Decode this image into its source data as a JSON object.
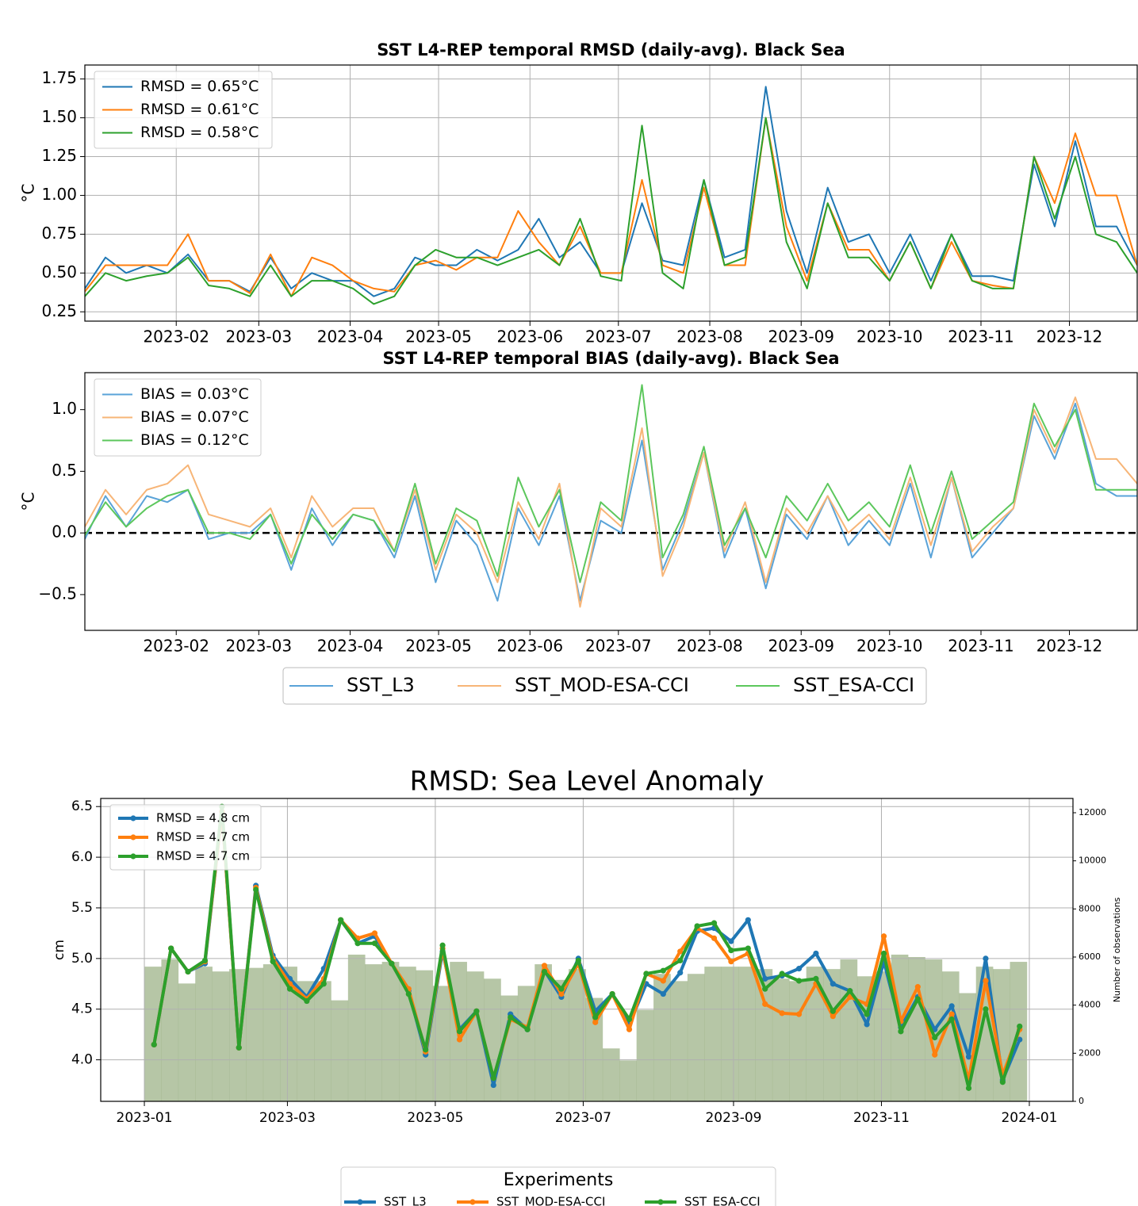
{
  "chart_data": [
    {
      "type": "line",
      "title": "SST L4-REP temporal RMSD (daily-avg). Black Sea",
      "y_label": "°C",
      "grid": true,
      "legend": "upper left",
      "x": [
        0,
        7,
        14,
        21,
        28,
        35,
        42,
        49,
        56,
        63,
        70,
        77,
        84,
        91,
        98,
        105,
        112,
        119,
        126,
        133,
        140,
        147,
        154,
        161,
        168,
        175,
        182,
        189,
        196,
        203,
        210,
        217,
        224,
        231,
        238,
        245,
        252,
        259,
        266,
        273,
        280,
        287,
        294,
        301,
        308,
        315,
        322,
        329,
        336,
        343,
        350,
        357
      ],
      "xlim": [
        0,
        357
      ],
      "xticks": [
        {
          "value": 31,
          "label": "2023-02"
        },
        {
          "value": 59,
          "label": "2023-03"
        },
        {
          "value": 90,
          "label": "2023-04"
        },
        {
          "value": 120,
          "label": "2023-05"
        },
        {
          "value": 151,
          "label": "2023-06"
        },
        {
          "value": 181,
          "label": "2023-07"
        },
        {
          "value": 212,
          "label": "2023-08"
        },
        {
          "value": 243,
          "label": "2023-09"
        },
        {
          "value": 273,
          "label": "2023-10"
        },
        {
          "value": 304,
          "label": "2023-11"
        },
        {
          "value": 334,
          "label": "2023-12"
        }
      ],
      "ylim": [
        0.19,
        1.84
      ],
      "yticks": [
        0.25,
        {
          "value": 0.5,
          "label": "0.50"
        },
        0.75,
        {
          "value": 1,
          "label": "1.00"
        },
        1.25,
        {
          "value": 1.5,
          "label": "1.50"
        },
        1.75
      ],
      "series": [
        {
          "label": "RMSD = 0.65°C",
          "color": "#1f77b4",
          "values": [
            0.4,
            0.6,
            0.5,
            0.55,
            0.5,
            0.62,
            0.45,
            0.45,
            0.38,
            0.6,
            0.4,
            0.5,
            0.45,
            0.45,
            0.35,
            0.4,
            0.6,
            0.55,
            0.55,
            0.65,
            0.58,
            0.65,
            0.85,
            0.6,
            0.7,
            0.5,
            0.5,
            0.95,
            0.58,
            0.55,
            1.1,
            0.6,
            0.65,
            1.7,
            0.9,
            0.5,
            1.05,
            0.7,
            0.75,
            0.5,
            0.75,
            0.45,
            0.75,
            0.48,
            0.48,
            0.45,
            1.2,
            0.8,
            1.35,
            0.8,
            0.8,
            0.55
          ]
        },
        {
          "label": "RMSD = 0.61°C",
          "color": "#ff7f0e",
          "values": [
            0.38,
            0.55,
            0.55,
            0.55,
            0.55,
            0.75,
            0.45,
            0.45,
            0.37,
            0.62,
            0.35,
            0.6,
            0.55,
            0.45,
            0.4,
            0.38,
            0.55,
            0.58,
            0.52,
            0.6,
            0.6,
            0.9,
            0.7,
            0.55,
            0.8,
            0.5,
            0.5,
            1.1,
            0.55,
            0.5,
            1.05,
            0.55,
            0.55,
            1.5,
            0.8,
            0.45,
            0.95,
            0.65,
            0.65,
            0.45,
            0.7,
            0.4,
            0.7,
            0.45,
            0.42,
            0.4,
            1.25,
            0.95,
            1.4,
            1.0,
            1.0,
            0.55
          ]
        },
        {
          "label": "RMSD = 0.58°C",
          "color": "#2ca02c",
          "values": [
            0.35,
            0.5,
            0.45,
            0.48,
            0.5,
            0.6,
            0.42,
            0.4,
            0.35,
            0.55,
            0.35,
            0.45,
            0.45,
            0.4,
            0.3,
            0.35,
            0.55,
            0.65,
            0.6,
            0.6,
            0.55,
            0.6,
            0.65,
            0.55,
            0.85,
            0.48,
            0.45,
            1.45,
            0.5,
            0.4,
            1.1,
            0.55,
            0.6,
            1.5,
            0.7,
            0.4,
            0.95,
            0.6,
            0.6,
            0.45,
            0.7,
            0.4,
            0.75,
            0.45,
            0.4,
            0.4,
            1.25,
            0.85,
            1.25,
            0.75,
            0.7,
            0.5
          ]
        }
      ]
    },
    {
      "type": "line",
      "title": "SST L4-REP temporal BIAS (daily-avg). Black Sea",
      "y_label": "°C",
      "grid": false,
      "legend": "upper left",
      "reference_line": 0,
      "x": [
        0,
        7,
        14,
        21,
        28,
        35,
        42,
        49,
        56,
        63,
        70,
        77,
        84,
        91,
        98,
        105,
        112,
        119,
        126,
        133,
        140,
        147,
        154,
        161,
        168,
        175,
        182,
        189,
        196,
        203,
        210,
        217,
        224,
        231,
        238,
        245,
        252,
        259,
        266,
        273,
        280,
        287,
        294,
        301,
        308,
        315,
        322,
        329,
        336,
        343,
        350,
        357
      ],
      "xlim": [
        0,
        357
      ],
      "xticks": [
        {
          "value": 31,
          "label": "2023-02"
        },
        {
          "value": 59,
          "label": "2023-03"
        },
        {
          "value": 90,
          "label": "2023-04"
        },
        {
          "value": 120,
          "label": "2023-05"
        },
        {
          "value": 151,
          "label": "2023-06"
        },
        {
          "value": 181,
          "label": "2023-07"
        },
        {
          "value": 212,
          "label": "2023-08"
        },
        {
          "value": 243,
          "label": "2023-09"
        },
        {
          "value": 273,
          "label": "2023-10"
        },
        {
          "value": 304,
          "label": "2023-11"
        },
        {
          "value": 334,
          "label": "2023-12"
        }
      ],
      "ylim": [
        -0.79,
        1.3
      ],
      "yticks": [
        {
          "value": -0.5,
          "label": "−0.5"
        },
        {
          "value": 0,
          "label": "0.0"
        },
        0.5,
        {
          "value": 1,
          "label": "1.0"
        }
      ],
      "series": [
        {
          "name": "SST_L3",
          "label": "BIAS = 0.03°C",
          "color": "#5aa3d8",
          "values": [
            -0.05,
            0.3,
            0.05,
            0.3,
            0.25,
            0.35,
            -0.05,
            0.0,
            0.0,
            0.15,
            -0.3,
            0.2,
            -0.1,
            0.15,
            0.1,
            -0.2,
            0.3,
            -0.4,
            0.1,
            -0.1,
            -0.55,
            0.2,
            -0.1,
            0.3,
            -0.55,
            0.1,
            0.0,
            0.75,
            -0.3,
            0.1,
            0.65,
            -0.2,
            0.2,
            -0.45,
            0.15,
            -0.05,
            0.3,
            -0.1,
            0.1,
            -0.1,
            0.4,
            -0.2,
            0.45,
            -0.2,
            0.0,
            0.2,
            0.95,
            0.6,
            1.05,
            0.4,
            0.3,
            0.3
          ]
        },
        {
          "name": "SST_MOD-ESA-CCI",
          "label": "BIAS = 0.07°C",
          "color": "#f7b577",
          "values": [
            0.05,
            0.35,
            0.15,
            0.35,
            0.4,
            0.55,
            0.15,
            0.1,
            0.05,
            0.2,
            -0.2,
            0.3,
            0.05,
            0.2,
            0.2,
            -0.15,
            0.35,
            -0.3,
            0.15,
            0.0,
            -0.4,
            0.25,
            -0.05,
            0.4,
            -0.6,
            0.2,
            0.05,
            0.85,
            -0.35,
            0.05,
            0.65,
            -0.15,
            0.25,
            -0.4,
            0.2,
            0.0,
            0.3,
            0.0,
            0.15,
            -0.05,
            0.45,
            -0.1,
            0.45,
            -0.15,
            0.05,
            0.2,
            1.0,
            0.65,
            1.1,
            0.6,
            0.6,
            0.4
          ]
        },
        {
          "name": "SST_ESA-CCI",
          "label": "BIAS = 0.12°C",
          "color": "#5cc75c",
          "values": [
            -0.02,
            0.25,
            0.05,
            0.2,
            0.3,
            0.35,
            0.0,
            0.0,
            -0.05,
            0.15,
            -0.25,
            0.15,
            -0.05,
            0.15,
            0.1,
            -0.15,
            0.4,
            -0.25,
            0.2,
            0.1,
            -0.35,
            0.45,
            0.05,
            0.35,
            -0.4,
            0.25,
            0.1,
            1.2,
            -0.2,
            0.15,
            0.7,
            -0.1,
            0.2,
            -0.2,
            0.3,
            0.1,
            0.4,
            0.1,
            0.25,
            0.05,
            0.55,
            0.0,
            0.5,
            -0.05,
            0.1,
            0.25,
            1.05,
            0.7,
            1.0,
            0.35,
            0.35,
            0.35
          ]
        }
      ]
    },
    {
      "type": "line",
      "title": "RMSD: Sea Level Anomaly",
      "y_label": "cm",
      "y2_label": "Number of observations",
      "grid": true,
      "legend": "upper left",
      "legend_title": "Experiments",
      "markers": true,
      "x": [
        4,
        11,
        18,
        25,
        32,
        39,
        46,
        53,
        60,
        67,
        74,
        81,
        88,
        95,
        102,
        109,
        116,
        123,
        130,
        137,
        144,
        151,
        158,
        165,
        172,
        179,
        186,
        193,
        200,
        207,
        214,
        221,
        228,
        235,
        242,
        249,
        256,
        263,
        270,
        277,
        284,
        291,
        298,
        305,
        312,
        319,
        326,
        333,
        340,
        347,
        354,
        361
      ],
      "xlim": [
        -18,
        383
      ],
      "xticks": [
        {
          "value": 0,
          "label": "2023-01"
        },
        {
          "value": 59,
          "label": "2023-03"
        },
        {
          "value": 120,
          "label": "2023-05"
        },
        {
          "value": 181,
          "label": "2023-07"
        },
        {
          "value": 243,
          "label": "2023-09"
        },
        {
          "value": 304,
          "label": "2023-11"
        },
        {
          "value": 365,
          "label": "2024-01"
        }
      ],
      "ylim": [
        3.59,
        6.58
      ],
      "yticks": [
        {
          "value": 4,
          "label": "4.0"
        },
        4.5,
        {
          "value": 5,
          "label": "5.0"
        },
        5.5,
        {
          "value": 6,
          "label": "6.0"
        },
        6.5
      ],
      "y2lim": [
        0,
        12594
      ],
      "y2ticks": [
        0,
        2000,
        4000,
        6000,
        8000,
        10000,
        12000
      ],
      "observations": {
        "color": "#8fa876",
        "bins": [
          0,
          7,
          14,
          21,
          28,
          35,
          42,
          49,
          56,
          63,
          70,
          77,
          84,
          91,
          98,
          105,
          112,
          119,
          126,
          133,
          140,
          147,
          154,
          161,
          168,
          175,
          182,
          189,
          196,
          203,
          210,
          217,
          224,
          231,
          238,
          245,
          252,
          259,
          266,
          273,
          280,
          287,
          294,
          301,
          308,
          315,
          322,
          329,
          336,
          343,
          350,
          357,
          364
        ],
        "counts": [
          5600,
          5900,
          4900,
          5600,
          5400,
          5500,
          5550,
          5700,
          5600,
          5000,
          5000,
          4200,
          6100,
          5700,
          5800,
          5600,
          5450,
          4800,
          5800,
          5400,
          5100,
          4400,
          4800,
          5700,
          5050,
          5500,
          4300,
          2200,
          1700,
          3800,
          5300,
          5000,
          5300,
          5600,
          5600,
          5600,
          5500,
          5100,
          5000,
          5600,
          5500,
          5900,
          5200,
          5400,
          6100,
          6000,
          5900,
          5400,
          4500,
          5600,
          5500,
          5800
        ]
      },
      "series": [
        {
          "name": "SST_L3",
          "label": "RMSD = 4.8 cm",
          "color": "#1f77b4",
          "values": [
            4.15,
            5.1,
            4.87,
            4.95,
            6.45,
            4.12,
            5.72,
            5.03,
            4.8,
            4.62,
            4.9,
            5.38,
            5.15,
            5.22,
            4.95,
            4.68,
            4.05,
            5.07,
            4.3,
            4.48,
            3.75,
            4.45,
            4.3,
            4.88,
            4.62,
            5.0,
            4.48,
            4.65,
            4.35,
            4.75,
            4.65,
            4.86,
            5.27,
            5.3,
            5.17,
            5.38,
            4.8,
            4.83,
            4.9,
            5.05,
            4.75,
            4.68,
            4.35,
            4.97,
            4.32,
            4.62,
            4.3,
            4.53,
            4.03,
            5.0,
            3.8,
            4.2
          ]
        },
        {
          "name": "SST_MOD-ESA-CCI",
          "label": "RMSD = 4.7 cm",
          "color": "#ff7f0e",
          "values": [
            4.15,
            5.1,
            4.87,
            4.97,
            6.45,
            4.12,
            5.7,
            5.0,
            4.75,
            4.6,
            4.8,
            5.38,
            5.2,
            5.25,
            4.95,
            4.7,
            4.08,
            5.1,
            4.2,
            4.48,
            3.82,
            4.4,
            4.32,
            4.93,
            4.65,
            4.95,
            4.37,
            4.65,
            4.3,
            4.85,
            4.78,
            5.07,
            5.3,
            5.2,
            4.97,
            5.05,
            4.55,
            4.46,
            4.45,
            4.75,
            4.43,
            4.62,
            4.55,
            5.22,
            4.38,
            4.72,
            4.05,
            4.45,
            3.8,
            4.78,
            3.85,
            4.3
          ]
        },
        {
          "name": "SST_ESA-CCI",
          "label": "RMSD = 4.7 cm",
          "color": "#2ca02c",
          "values": [
            4.15,
            5.1,
            4.87,
            4.98,
            6.5,
            4.12,
            5.68,
            4.97,
            4.7,
            4.58,
            4.75,
            5.38,
            5.15,
            5.15,
            4.95,
            4.65,
            4.1,
            5.13,
            4.28,
            4.48,
            3.82,
            4.42,
            4.3,
            4.87,
            4.7,
            4.98,
            4.42,
            4.65,
            4.4,
            4.85,
            4.88,
            4.98,
            5.32,
            5.35,
            5.08,
            5.1,
            4.7,
            4.85,
            4.78,
            4.8,
            4.48,
            4.68,
            4.45,
            5.05,
            4.28,
            4.6,
            4.22,
            4.4,
            3.72,
            4.5,
            3.78,
            4.33
          ]
        }
      ]
    }
  ]
}
